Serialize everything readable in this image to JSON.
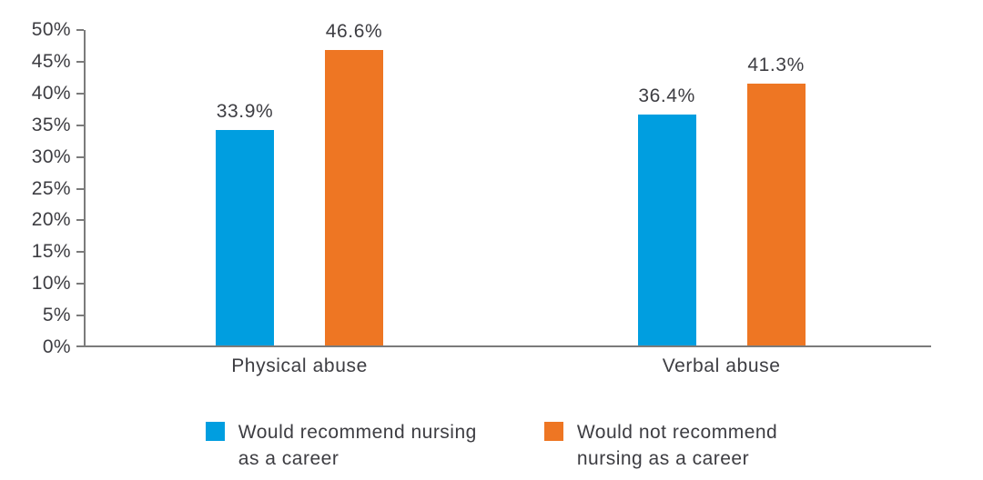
{
  "chart_data": {
    "type": "bar",
    "categories": [
      "Physical abuse",
      "Verbal abuse"
    ],
    "series": [
      {
        "name": "Would recommend nursing as a career",
        "color": "#009EE0",
        "values": [
          33.9,
          36.4
        ],
        "value_labels": [
          "33.9%",
          "36.4%"
        ]
      },
      {
        "name": "Would not recommend nursing as a career",
        "color": "#EE7623",
        "values": [
          46.6,
          41.3
        ],
        "value_labels": [
          "46.6%",
          "41.3%"
        ]
      }
    ],
    "title": "",
    "xlabel": "",
    "ylabel": "",
    "y_axis": {
      "min": 0,
      "max": 50,
      "step": 5,
      "tick_labels": [
        "0%",
        "5%",
        "10%",
        "15%",
        "20%",
        "25%",
        "30%",
        "35%",
        "40%",
        "45%",
        "50%"
      ]
    },
    "grid": false,
    "legend_position": "bottom",
    "group_centers_pct": [
      25.3,
      75.2
    ]
  },
  "legend": {
    "items": [
      {
        "lines": [
          "Would recommend nursing",
          "as a career"
        ],
        "color": "#009EE0"
      },
      {
        "lines": [
          "Would not recommend",
          "nursing as a career"
        ],
        "color": "#EE7623"
      }
    ]
  },
  "colors": {
    "axis": "#7b7b7b",
    "text": "#3d3d42",
    "background": "#ffffff"
  }
}
